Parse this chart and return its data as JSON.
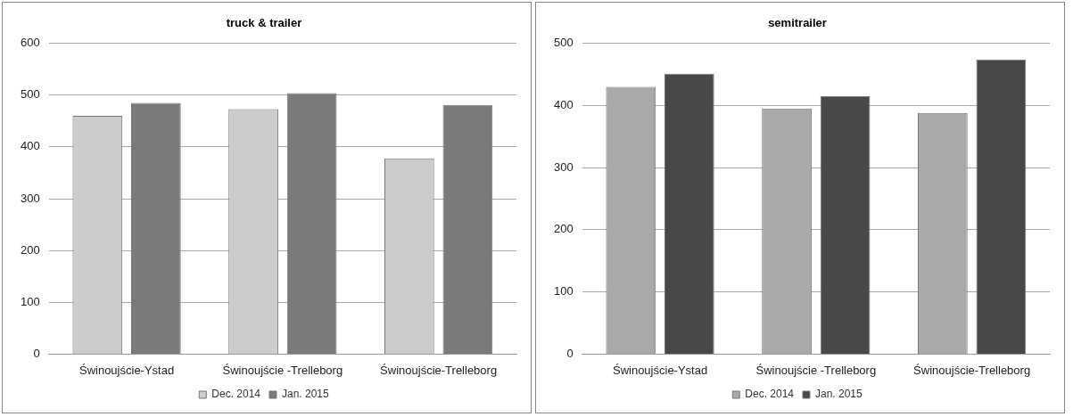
{
  "chart_data": [
    {
      "type": "bar",
      "title": "truck & trailer",
      "categories": [
        "Świnoujście-Ystad",
        "Świnoujście -Trelleborg",
        "Świnoujście-Trelleborg"
      ],
      "series": [
        {
          "name": "Dec. 2014",
          "color": "#cccccc",
          "values": [
            460,
            473,
            378
          ]
        },
        {
          "name": "Jan. 2015",
          "color": "#7a7a7a",
          "values": [
            485,
            504,
            481
          ]
        }
      ],
      "ylim": [
        0,
        600
      ],
      "yticks": [
        0,
        100,
        200,
        300,
        400,
        500,
        600
      ],
      "grid": "y",
      "legend": "bottom"
    },
    {
      "type": "bar",
      "title": "semitrailer",
      "categories": [
        "Świnoujście-Ystad",
        "Świnoujście -Trelleborg",
        "Świnoujście-Trelleborg"
      ],
      "series": [
        {
          "name": "Dec. 2014",
          "color": "#a9a9a9",
          "values": [
            430,
            395,
            388
          ]
        },
        {
          "name": "Jan. 2015",
          "color": "#484848",
          "values": [
            451,
            415,
            474
          ]
        }
      ],
      "ylim": [
        0,
        500
      ],
      "yticks": [
        0,
        100,
        200,
        300,
        400,
        500
      ],
      "grid": "y",
      "legend": "bottom"
    }
  ]
}
